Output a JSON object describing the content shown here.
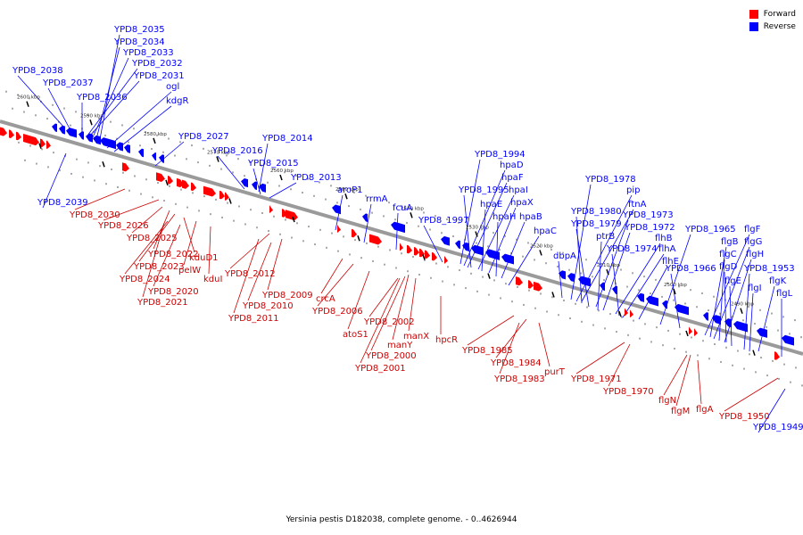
{
  "legend": {
    "forward_label": "Forward",
    "reverse_label": "Reverse"
  },
  "colors": {
    "forward": "#ff0000",
    "reverse": "#0000ff",
    "axis": "#9a9a9a"
  },
  "caption": "Yersinia pestis D182038, complete genome. - 0..4626944",
  "ticks": [
    "2600 kbp",
    "2590 kbp",
    "2580 kbp",
    "2570 kbp",
    "2560 kbp",
    "2550 kbp",
    "2540 kbp",
    "2530 kbp",
    "2520 kbp",
    "2510 kbp",
    "2500 kbp",
    "2490 kbp"
  ],
  "reverse_labels": [
    "YPD8_2035",
    "YPD8_2034",
    "YPD8_2033",
    "YPD8_2032",
    "YPD8_2038",
    "YPD8_2031",
    "YPD8_2037",
    "ogl",
    "YPD8_2036",
    "kdgR",
    "YPD8_2027",
    "YPD8_2016",
    "YPD8_2014",
    "YPD8_2015",
    "YPD8_2013",
    "YPD8_2039",
    "aroP1",
    "rrmA",
    "fcuA",
    "YPD8_1997",
    "YPD8_1994",
    "hpaD",
    "hpaF",
    "YPD8_1995",
    "hpaI",
    "hpaE",
    "hpaX",
    "hpaH",
    "hpaB",
    "hpaC",
    "YPD8_1978",
    "pip",
    "ftnA",
    "YPD8_1980",
    "YPD8_1973",
    "YPD8_1979",
    "YPD8_1972",
    "ptrB",
    "flhB",
    "YPD8_1974",
    "flhA",
    "dbpA",
    "flhE",
    "YPD8_1965",
    "flgF",
    "flgB",
    "flgG",
    "flgC",
    "flgH",
    "flgD",
    "YPD8_1966",
    "YPD8_1953",
    "flgE",
    "flgK",
    "flgI",
    "flgL",
    "YPD8_1949"
  ],
  "forward_labels": [
    "YPD8_2030",
    "YPD8_2026",
    "YPD8_2025",
    "YPD8_2022",
    "YPD8_2023",
    "kduD1",
    "YPD8_2024",
    "pelW",
    "kduI",
    "YPD8_2020",
    "YPD8_2021",
    "YPD8_2012",
    "YPD8_2009",
    "crcA",
    "YPD8_2010",
    "YPD8_2006",
    "YPD8_2011",
    "YPD8_2002",
    "atoS1",
    "manX",
    "manY",
    "YPD8_2000",
    "hpcR",
    "YPD8_2001",
    "YPD8_1985",
    "YPD8_1984",
    "purT",
    "YPD8_1983",
    "YPD8_1971",
    "YPD8_1970",
    "flgN",
    "flgM",
    "flgA",
    "YPD8_1950"
  ]
}
